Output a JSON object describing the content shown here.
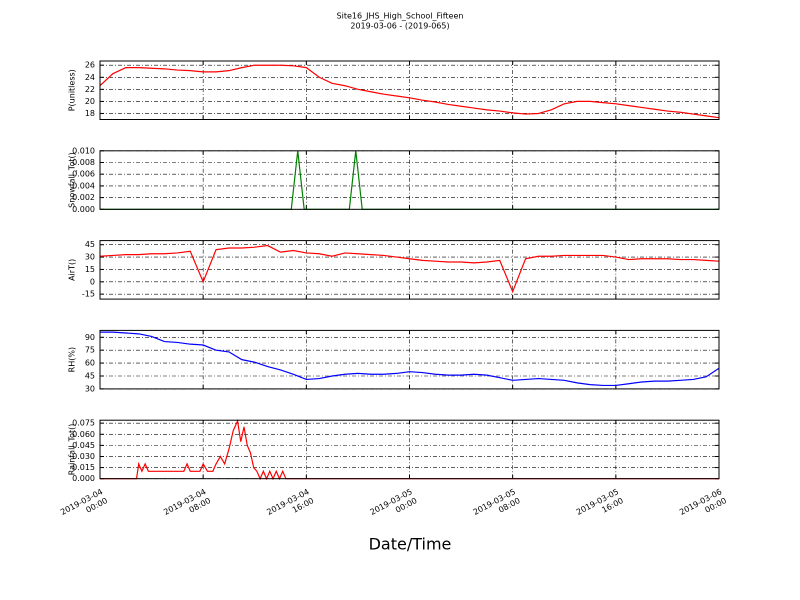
{
  "chart_data": [
    {
      "type": "line",
      "title": "Site16_JHS_High_School_Fifteen",
      "subtitle": "2019-03-06 - (2019-065)",
      "ylabel": "P(unitless)",
      "color": "#ff0000",
      "grid": true,
      "xlim": [
        "2019-03-04 00:00",
        "2019-03-06 00:00"
      ],
      "xticks": [
        "2019-03-04 00:00",
        "2019-03-04 08:00",
        "2019-03-04 16:00",
        "2019-03-05 00:00",
        "2019-03-05 08:00",
        "2019-03-05 16:00",
        "2019-03-06 00:00"
      ],
      "ylim": [
        17,
        26.7
      ],
      "yticks": [
        18,
        20,
        22,
        24,
        26
      ],
      "x": [
        "2019-03-04 00:00",
        "2019-03-04 01:00",
        "2019-03-04 02:00",
        "2019-03-04 03:00",
        "2019-03-04 04:00",
        "2019-03-04 05:00",
        "2019-03-04 06:00",
        "2019-03-04 07:00",
        "2019-03-04 08:00",
        "2019-03-04 09:00",
        "2019-03-04 10:00",
        "2019-03-04 11:00",
        "2019-03-04 12:00",
        "2019-03-04 13:00",
        "2019-03-04 14:00",
        "2019-03-04 15:00",
        "2019-03-04 16:00",
        "2019-03-04 17:00",
        "2019-03-04 18:00",
        "2019-03-04 19:00",
        "2019-03-04 20:00",
        "2019-03-04 21:00",
        "2019-03-04 22:00",
        "2019-03-04 23:00",
        "2019-03-05 00:00",
        "2019-03-05 01:00",
        "2019-03-05 02:00",
        "2019-03-05 03:00",
        "2019-03-05 04:00",
        "2019-03-05 05:00",
        "2019-03-05 06:00",
        "2019-03-05 07:00",
        "2019-03-05 08:00",
        "2019-03-05 09:00",
        "2019-03-05 10:00",
        "2019-03-05 11:00",
        "2019-03-05 12:00",
        "2019-03-05 13:00",
        "2019-03-05 14:00",
        "2019-03-05 15:00",
        "2019-03-05 16:00",
        "2019-03-05 17:00",
        "2019-03-05 18:00",
        "2019-03-05 19:00",
        "2019-03-05 20:00",
        "2019-03-05 21:00",
        "2019-03-05 22:00",
        "2019-03-05 23:00",
        "2019-03-06 00:00"
      ],
      "values": [
        22.6,
        24.6,
        25.6,
        25.6,
        25.5,
        25.4,
        25.2,
        25.1,
        24.9,
        24.9,
        25.1,
        25.6,
        26.0,
        26.0,
        26.0,
        25.9,
        25.6,
        24.0,
        23.0,
        22.6,
        22.0,
        21.6,
        21.2,
        20.9,
        20.6,
        20.2,
        19.9,
        19.5,
        19.2,
        18.9,
        18.6,
        18.4,
        18.1,
        17.9,
        18.0,
        18.6,
        19.6,
        20.0,
        20.0,
        19.8,
        19.6,
        19.3,
        19.0,
        18.7,
        18.4,
        18.2,
        17.9,
        17.6,
        17.3
      ]
    },
    {
      "type": "line",
      "ylabel": "Snowfall_Tot()",
      "color": "#008000",
      "grid": true,
      "xlim": [
        "2019-03-04 00:00",
        "2019-03-06 00:00"
      ],
      "xticks": [
        "2019-03-04 00:00",
        "2019-03-04 08:00",
        "2019-03-04 16:00",
        "2019-03-05 00:00",
        "2019-03-05 08:00",
        "2019-03-05 16:00",
        "2019-03-06 00:00"
      ],
      "ylim": [
        0,
        0.01
      ],
      "yticks": [
        {
          "value": 0,
          "label": "0.000"
        },
        {
          "value": 0.002,
          "label": "0.002"
        },
        {
          "value": 0.004,
          "label": "0.004"
        },
        {
          "value": 0.006,
          "label": "0.006"
        },
        {
          "value": 0.008,
          "label": "0.008"
        },
        {
          "value": 0.01,
          "label": "0.010"
        }
      ],
      "x": [
        "2019-03-04 00:00",
        "2019-03-04 14:50",
        "2019-03-04 15:20",
        "2019-03-04 15:50",
        "2019-03-04 19:20",
        "2019-03-04 19:50",
        "2019-03-04 20:20",
        "2019-03-06 00:00"
      ],
      "values": [
        0,
        0,
        0.01,
        0,
        0,
        0.01,
        0,
        0
      ]
    },
    {
      "type": "line",
      "ylabel": "AirT()",
      "color": "#ff0000",
      "grid": true,
      "xlim": [
        "2019-03-04 00:00",
        "2019-03-06 00:00"
      ],
      "xticks": [
        "2019-03-04 00:00",
        "2019-03-04 08:00",
        "2019-03-04 16:00",
        "2019-03-05 00:00",
        "2019-03-05 08:00",
        "2019-03-05 16:00",
        "2019-03-06 00:00"
      ],
      "ylim": [
        -21,
        50
      ],
      "yticks": [
        -15,
        0,
        15,
        30,
        45
      ],
      "x": [
        "2019-03-04 00:00",
        "2019-03-04 01:00",
        "2019-03-04 02:00",
        "2019-03-04 03:00",
        "2019-03-04 04:00",
        "2019-03-04 05:00",
        "2019-03-04 06:00",
        "2019-03-04 07:00",
        "2019-03-04 08:00",
        "2019-03-04 09:00",
        "2019-03-04 10:00",
        "2019-03-04 11:00",
        "2019-03-04 12:00",
        "2019-03-04 13:00",
        "2019-03-04 14:00",
        "2019-03-04 15:00",
        "2019-03-04 16:00",
        "2019-03-04 17:00",
        "2019-03-04 18:00",
        "2019-03-04 19:00",
        "2019-03-04 20:00",
        "2019-03-04 21:00",
        "2019-03-04 22:00",
        "2019-03-04 23:00",
        "2019-03-05 00:00",
        "2019-03-05 01:00",
        "2019-03-05 02:00",
        "2019-03-05 03:00",
        "2019-03-05 04:00",
        "2019-03-05 05:00",
        "2019-03-05 06:00",
        "2019-03-05 07:00",
        "2019-03-05 08:00",
        "2019-03-05 09:00",
        "2019-03-05 10:00",
        "2019-03-05 11:00",
        "2019-03-05 12:00",
        "2019-03-05 13:00",
        "2019-03-05 14:00",
        "2019-03-05 15:00",
        "2019-03-05 16:00",
        "2019-03-05 17:00",
        "2019-03-05 18:00",
        "2019-03-05 19:00",
        "2019-03-05 20:00",
        "2019-03-05 21:00",
        "2019-03-05 22:00",
        "2019-03-05 23:00",
        "2019-03-06 00:00"
      ],
      "values": [
        31,
        32,
        33,
        33,
        34,
        34,
        35,
        37,
        0,
        39,
        41,
        41,
        42,
        44,
        36,
        38,
        35,
        34,
        31,
        35,
        34,
        33,
        32,
        30,
        28,
        26,
        25,
        24,
        24,
        23,
        24,
        26,
        -12,
        28,
        31,
        31,
        32,
        32,
        32,
        32,
        30,
        27,
        28,
        28,
        28,
        27,
        27,
        26,
        25
      ]
    },
    {
      "type": "line",
      "ylabel": "RH(%)",
      "color": "#0000ff",
      "grid": true,
      "xlim": [
        "2019-03-04 00:00",
        "2019-03-06 00:00"
      ],
      "xticks": [
        "2019-03-04 00:00",
        "2019-03-04 08:00",
        "2019-03-04 16:00",
        "2019-03-05 00:00",
        "2019-03-05 08:00",
        "2019-03-05 16:00",
        "2019-03-06 00:00"
      ],
      "ylim": [
        30,
        98
      ],
      "yticks": [
        30,
        45,
        60,
        75,
        90
      ],
      "x": [
        "2019-03-04 00:00",
        "2019-03-04 01:00",
        "2019-03-04 02:00",
        "2019-03-04 03:00",
        "2019-03-04 04:00",
        "2019-03-04 05:00",
        "2019-03-04 06:00",
        "2019-03-04 07:00",
        "2019-03-04 08:00",
        "2019-03-04 09:00",
        "2019-03-04 10:00",
        "2019-03-04 11:00",
        "2019-03-04 12:00",
        "2019-03-04 13:00",
        "2019-03-04 14:00",
        "2019-03-04 15:00",
        "2019-03-04 16:00",
        "2019-03-04 17:00",
        "2019-03-04 18:00",
        "2019-03-04 19:00",
        "2019-03-04 20:00",
        "2019-03-04 21:00",
        "2019-03-04 22:00",
        "2019-03-04 23:00",
        "2019-03-05 00:00",
        "2019-03-05 01:00",
        "2019-03-05 02:00",
        "2019-03-05 03:00",
        "2019-03-05 04:00",
        "2019-03-05 05:00",
        "2019-03-05 06:00",
        "2019-03-05 07:00",
        "2019-03-05 08:00",
        "2019-03-05 09:00",
        "2019-03-05 10:00",
        "2019-03-05 11:00",
        "2019-03-05 12:00",
        "2019-03-05 13:00",
        "2019-03-05 14:00",
        "2019-03-05 15:00",
        "2019-03-05 16:00",
        "2019-03-05 17:00",
        "2019-03-05 18:00",
        "2019-03-05 19:00",
        "2019-03-05 20:00",
        "2019-03-05 21:00",
        "2019-03-05 22:00",
        "2019-03-05 23:00",
        "2019-03-06 00:00"
      ],
      "values": [
        96,
        96,
        95,
        94,
        91,
        85,
        84,
        82,
        81,
        75,
        73,
        64,
        61,
        56,
        52,
        47,
        41,
        42,
        45,
        47,
        48,
        47,
        47,
        48,
        50,
        49,
        47,
        46,
        46,
        47,
        46,
        43,
        40,
        41,
        42,
        41,
        40,
        37,
        35,
        34,
        34,
        36,
        38,
        39,
        39,
        40,
        41,
        44,
        54
      ]
    },
    {
      "type": "line",
      "ylabel": "Rainfall_Tot()",
      "xlabel": "Date/Time",
      "color": "#ff0000",
      "grid": true,
      "xlim": [
        "2019-03-04 00:00",
        "2019-03-06 00:00"
      ],
      "xticks": [
        {
          "value": "2019-03-04 00:00",
          "label": "2019-03-04\n00:00"
        },
        {
          "value": "2019-03-04 08:00",
          "label": "2019-03-04\n08:00"
        },
        {
          "value": "2019-03-04 16:00",
          "label": "2019-03-04\n16:00"
        },
        {
          "value": "2019-03-05 00:00",
          "label": "2019-03-05\n00:00"
        },
        {
          "value": "2019-03-05 08:00",
          "label": "2019-03-05\n08:00"
        },
        {
          "value": "2019-03-05 16:00",
          "label": "2019-03-05\n16:00"
        },
        {
          "value": "2019-03-06 00:00",
          "label": "2019-03-06\n00:00"
        }
      ],
      "ylim": [
        0,
        0.079
      ],
      "yticks": [
        {
          "value": 0,
          "label": "0.000"
        },
        {
          "value": 0.015,
          "label": "0.015"
        },
        {
          "value": 0.03,
          "label": "0.030"
        },
        {
          "value": 0.045,
          "label": "0.045"
        },
        {
          "value": 0.06,
          "label": "0.060"
        },
        {
          "value": 0.075,
          "label": "0.075"
        }
      ],
      "x": [
        "2019-03-04 00:00",
        "2019-03-04 02:50",
        "2019-03-04 03:00",
        "2019-03-04 03:15",
        "2019-03-04 03:30",
        "2019-03-04 03:45",
        "2019-03-04 06:30",
        "2019-03-04 06:45",
        "2019-03-04 07:00",
        "2019-03-04 07:45",
        "2019-03-04 08:00",
        "2019-03-04 08:20",
        "2019-03-04 08:45",
        "2019-03-04 09:00",
        "2019-03-04 09:20",
        "2019-03-04 09:40",
        "2019-03-04 10:00",
        "2019-03-04 10:20",
        "2019-03-04 10:40",
        "2019-03-04 10:55",
        "2019-03-04 11:10",
        "2019-03-04 11:25",
        "2019-03-04 11:40",
        "2019-03-04 11:55",
        "2019-03-04 12:10",
        "2019-03-04 12:25",
        "2019-03-04 12:40",
        "2019-03-04 12:55",
        "2019-03-04 13:10",
        "2019-03-04 13:25",
        "2019-03-04 13:40",
        "2019-03-04 13:55",
        "2019-03-04 14:10",
        "2019-03-04 14:25",
        "2019-03-06 00:00"
      ],
      "values": [
        0,
        0,
        0.02,
        0.01,
        0.02,
        0.01,
        0.01,
        0.02,
        0.01,
        0.01,
        0.02,
        0.01,
        0.01,
        0.02,
        0.03,
        0.02,
        0.04,
        0.065,
        0.078,
        0.05,
        0.07,
        0.045,
        0.035,
        0.015,
        0.01,
        0,
        0.01,
        0,
        0.01,
        0,
        0.01,
        0,
        0.01,
        0,
        0
      ]
    }
  ]
}
